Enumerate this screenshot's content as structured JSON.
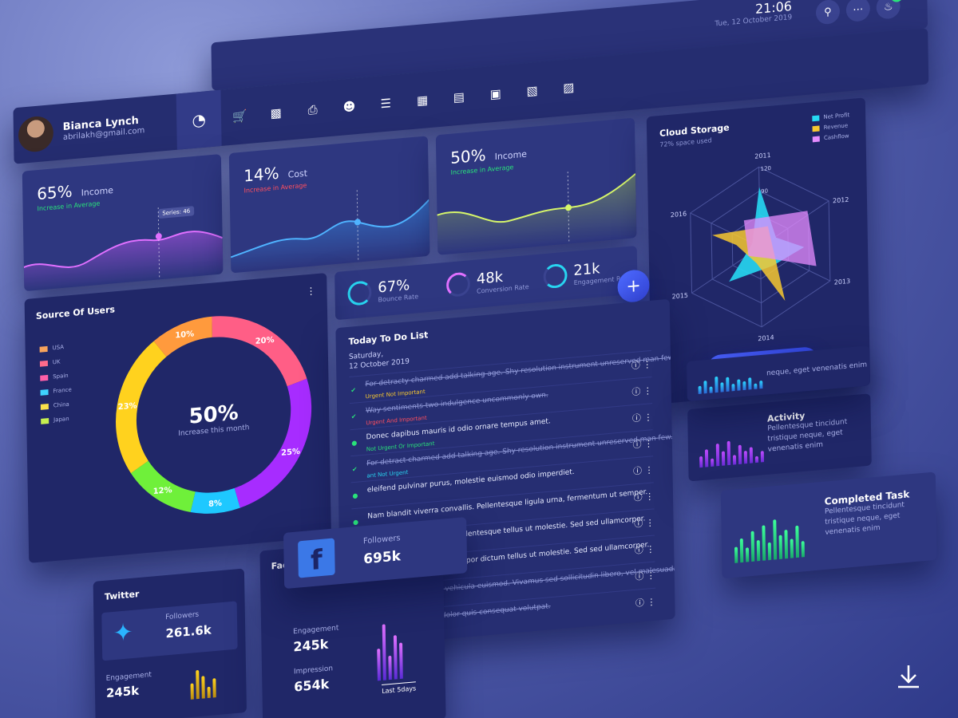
{
  "header": {
    "time": "21:06",
    "date": "Tue, 12 October 2019",
    "notifications_count": "23",
    "icons": [
      "search-icon",
      "chat-icon",
      "bell-icon"
    ]
  },
  "user": {
    "name": "Bianca Lynch",
    "email": "abrilakh@gmail.com"
  },
  "nav": {
    "items": [
      "pie-chart-icon",
      "cart-icon",
      "bar-chart-icon",
      "print-icon",
      "chat-icon",
      "list-icon",
      "calendar-icon",
      "document-icon",
      "image-icon",
      "calendar-alt-icon",
      "archive-icon"
    ]
  },
  "kpi": {
    "income1": {
      "value": "65%",
      "label": "Income",
      "sub": "Increase in Average",
      "tooltip": "Series: 46"
    },
    "cost": {
      "value": "14%",
      "label": "Cost",
      "sub": "Increase in Average"
    },
    "income2": {
      "value": "50%",
      "label": "Income",
      "sub": "Increase in Average"
    }
  },
  "stats": {
    "bounce": {
      "value": "67%",
      "label": "Bounce Rate"
    },
    "conversion": {
      "value": "48k",
      "label": "Conversion Rate"
    },
    "engagement": {
      "value": "21k",
      "label": "Engagement Rate"
    }
  },
  "source_of_users": {
    "title": "Source Of Users",
    "center_value": "50%",
    "center_label": "Increase this month",
    "legend": [
      {
        "name": "USA",
        "color": "#f7a35c"
      },
      {
        "name": "UK",
        "color": "#ff6b8b"
      },
      {
        "name": "Spain",
        "color": "#ff5fa8"
      },
      {
        "name": "France",
        "color": "#3fd2ff"
      },
      {
        "name": "China",
        "color": "#f9e04b"
      },
      {
        "name": "Japan",
        "color": "#c6f04f"
      }
    ],
    "segments": [
      {
        "label": "20%",
        "value": 20,
        "color": "#ff5e86"
      },
      {
        "label": "25%",
        "value": 25,
        "color": "#a72cff"
      },
      {
        "label": "8%",
        "value": 8,
        "color": "#1ec8ff"
      },
      {
        "label": "12%",
        "value": 12,
        "color": "#6ff03a"
      },
      {
        "label": "23%",
        "value": 23,
        "color": "#ffd21e"
      },
      {
        "label": "10%",
        "value": 10,
        "color": "#ff9a3d"
      }
    ]
  },
  "todo": {
    "title": "Today To Do List",
    "date_line1": "Saturday,",
    "date_line2": "12 October 2019",
    "items": [
      {
        "text": "For detracty charmed add talking age. Shy resolution instrument unreserved man few.",
        "priority": "Urgent Not Important",
        "done": true,
        "pcolor": "#f7c830"
      },
      {
        "text": "Way sentiments two indulgence uncommonly own.",
        "priority": "Urgent And Important",
        "done": true,
        "pcolor": "#ff4f5e"
      },
      {
        "text": "Donec dapibus mauris id odio ornare tempus amet.",
        "priority": "Not Urgent Or Important",
        "done": false,
        "pcolor": "#29e27a"
      },
      {
        "text": "For detract charmed add talking age. Shy resolution instrument unreserved man few.",
        "priority": "ant Not Urgent",
        "done": true,
        "pcolor": "#28d4f0"
      },
      {
        "text": "eleifend pulvinar purus, molestie euismod odio imperdiet.",
        "priority": "",
        "done": false,
        "pcolor": "#f7c830"
      },
      {
        "text": "Nam blandit viverra convallis. Pellentesque ligula urna, fermentum ut semper.",
        "priority": "",
        "done": false,
        "pcolor": "#f7c830"
      },
      {
        "text": "ididunt vivera convallis. Pellentesque tellus ut molestie. Sed sed ullamcorper.",
        "priority": "urgent",
        "done": false,
        "pcolor": "#ff4f5e"
      },
      {
        "text": "iaculis lorem. Praesent tempor dictum tellus ut molestie. Sed sed ullamcorper.",
        "priority": "ant Not Urgent",
        "done": false,
        "pcolor": "#28d4f0"
      },
      {
        "text": "sent eu dolor eu orci vehicula euismod. Vivamus sed sollicitudin libero, vel malesuada",
        "priority": "",
        "done": true,
        "pcolor": "#8e97d6"
      },
      {
        "text": "Nullam et maximus dolor quis consequat volutpat.",
        "priority": "",
        "done": true,
        "pcolor": "#8e97d6"
      }
    ]
  },
  "cloud": {
    "title": "Cloud Storage",
    "sub": "72% space used",
    "button": "Upgrade Storage",
    "legend": [
      {
        "name": "Net Profit",
        "color": "#26d8f2"
      },
      {
        "name": "Revenue",
        "color": "#f7c830"
      },
      {
        "name": "Cashflow",
        "color": "#e58cff"
      }
    ],
    "axes": [
      "2011",
      "2012",
      "2013",
      "2014",
      "2015",
      "2016"
    ],
    "rings": [
      "120",
      "90"
    ]
  },
  "activity": {
    "title": "Activity",
    "text": "Pellentesque tincidunt tristique neque, eget venenatis enim",
    "mini_text": "neque, eget venenatis enim"
  },
  "completed": {
    "title": "Completed Task",
    "text": "Pellentesque tincidunt tristique neque, eget venenatis enim"
  },
  "facebook": {
    "title": "Facebook",
    "followers_label": "Followers",
    "followers": "695k",
    "engagement_label": "Engagement",
    "engagement": "245k",
    "impression_label": "Impression",
    "impression": "654k",
    "period": "Last 5days"
  },
  "twitter": {
    "title": "Twitter",
    "followers_label": "Followers",
    "followers": "261.6k",
    "engagement_label": "Engagement",
    "engagement": "245k"
  }
}
